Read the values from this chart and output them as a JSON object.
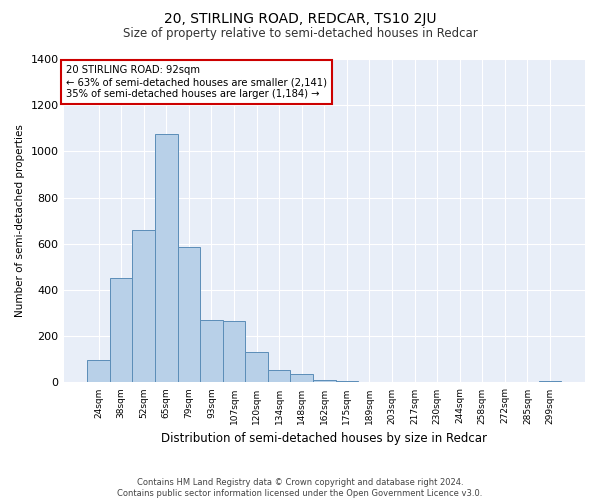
{
  "title": "20, STIRLING ROAD, REDCAR, TS10 2JU",
  "subtitle": "Size of property relative to semi-detached houses in Redcar",
  "xlabel": "Distribution of semi-detached houses by size in Redcar",
  "ylabel": "Number of semi-detached properties",
  "footer1": "Contains HM Land Registry data © Crown copyright and database right 2024.",
  "footer2": "Contains public sector information licensed under the Open Government Licence v3.0.",
  "annotation_title": "20 STIRLING ROAD: 92sqm",
  "annotation_line2": "← 63% of semi-detached houses are smaller (2,141)",
  "annotation_line3": "35% of semi-detached houses are larger (1,184) →",
  "bar_values": [
    95,
    450,
    660,
    1075,
    585,
    270,
    265,
    130,
    55,
    35,
    10,
    8,
    3,
    2,
    1,
    0,
    0,
    1,
    0,
    0,
    5
  ],
  "bar_labels": [
    "24sqm",
    "38sqm",
    "52sqm",
    "65sqm",
    "79sqm",
    "93sqm",
    "107sqm",
    "120sqm",
    "134sqm",
    "148sqm",
    "162sqm",
    "175sqm",
    "189sqm",
    "203sqm",
    "217sqm",
    "230sqm",
    "244sqm",
    "258sqm",
    "272sqm",
    "285sqm",
    "299sqm"
  ],
  "bar_color": "#b8d0e8",
  "bar_edge_color": "#5b8db8",
  "annotation_box_color": "#cc0000",
  "background_color": "#e8eef8",
  "ylim": [
    0,
    1400
  ],
  "yticks": [
    0,
    200,
    400,
    600,
    800,
    1000,
    1200,
    1400
  ]
}
